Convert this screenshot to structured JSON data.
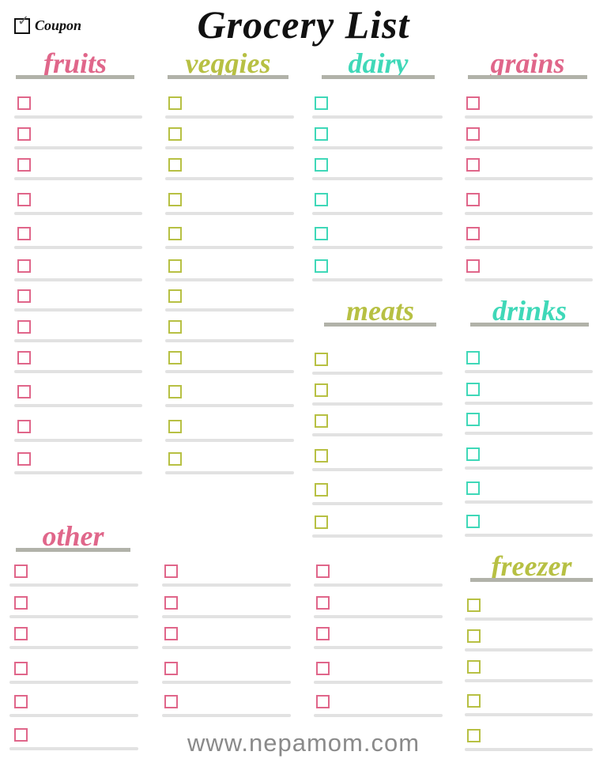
{
  "title": "Grocery List",
  "coupon_label": "Coupon",
  "footer": "www.nepamom.com",
  "colors": {
    "pink": "#e0668a",
    "olive": "#b7c043",
    "teal": "#3fd8b8",
    "heading_underline": "#b1b2a9",
    "write_line": "#e2e2e2"
  },
  "sections": [
    {
      "id": "fruits",
      "label": "fruits",
      "color": "#e0668a",
      "checkboxes": 12
    },
    {
      "id": "veggies",
      "label": "veggies",
      "color": "#b7c043",
      "checkboxes": 12
    },
    {
      "id": "dairy",
      "label": "dairy",
      "color": "#3fd8b8",
      "checkboxes": 6
    },
    {
      "id": "grains",
      "label": "grains",
      "color": "#e0668a",
      "checkboxes": 6
    },
    {
      "id": "meats",
      "label": "meats",
      "color": "#b7c043",
      "checkboxes": 6
    },
    {
      "id": "drinks",
      "label": "drinks",
      "color": "#3fd8b8",
      "checkboxes": 6
    },
    {
      "id": "other",
      "label": "other",
      "color": "#e0668a",
      "checkboxes": 16
    },
    {
      "id": "freezer",
      "label": "freezer",
      "color": "#b7c043",
      "checkboxes": 5
    }
  ]
}
